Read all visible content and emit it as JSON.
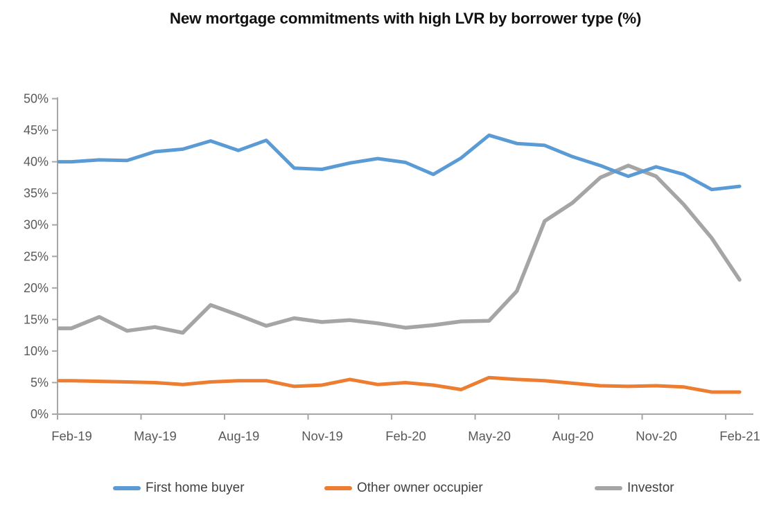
{
  "title": "New mortgage commitments with high LVR by borrower type (%)",
  "colors": {
    "first_home_buyer": "#5B9BD5",
    "other_owner_occupier": "#ED7D31",
    "investor": "#A5A5A5",
    "axis": "#A6A6A6",
    "tick_label": "#595959",
    "legend_text": "#404040",
    "title_text": "#111111"
  },
  "chart_data": {
    "type": "line",
    "title": "New mortgage commitments with high LVR by borrower type (%)",
    "xlabel": "",
    "ylabel": "",
    "ylim": [
      0,
      50
    ],
    "y_tick_step": 5,
    "grid": false,
    "legend_position": "bottom",
    "categories": [
      "Feb-19",
      "Mar-19",
      "Apr-19",
      "May-19",
      "Jun-19",
      "Jul-19",
      "Aug-19",
      "Sep-19",
      "Oct-19",
      "Nov-19",
      "Dec-19",
      "Jan-20",
      "Feb-20",
      "Mar-20",
      "Apr-20",
      "May-20",
      "Jun-20",
      "Jul-20",
      "Aug-20",
      "Sep-20",
      "Oct-20",
      "Nov-20",
      "Dec-20",
      "Jan-21",
      "Feb-21"
    ],
    "x_tick_labels": [
      "Feb-19",
      "May-19",
      "Aug-19",
      "Nov-19",
      "Feb-20",
      "May-20",
      "Aug-20",
      "Nov-20",
      "Feb-21"
    ],
    "y_tick_labels": [
      "0%",
      "5%",
      "10%",
      "15%",
      "20%",
      "25%",
      "30%",
      "35%",
      "40%",
      "45%",
      "50%"
    ],
    "series": [
      {
        "name": "First home buyer",
        "color": "#5B9BD5",
        "values": [
          40.0,
          40.3,
          40.2,
          41.6,
          42.0,
          43.3,
          41.8,
          43.4,
          39.0,
          38.8,
          39.8,
          40.5,
          39.9,
          38.0,
          40.6,
          44.2,
          42.9,
          42.6,
          40.8,
          39.4,
          37.7,
          39.2,
          38.0,
          35.6,
          36.1
        ]
      },
      {
        "name": "Other owner occupier",
        "color": "#ED7D31",
        "values": [
          5.3,
          5.2,
          5.1,
          5.0,
          4.7,
          5.1,
          5.3,
          5.3,
          4.4,
          4.6,
          5.5,
          4.7,
          5.0,
          4.6,
          3.9,
          5.8,
          5.5,
          5.3,
          4.9,
          4.5,
          4.4,
          4.5,
          4.3,
          3.5,
          3.5
        ]
      },
      {
        "name": "Investor",
        "color": "#A5A5A5",
        "values": [
          13.6,
          15.4,
          13.2,
          13.8,
          12.9,
          17.3,
          15.7,
          14.0,
          15.2,
          14.6,
          14.9,
          14.4,
          13.7,
          14.1,
          14.7,
          14.8,
          19.5,
          30.6,
          33.5,
          37.5,
          39.4,
          37.7,
          33.2,
          27.9,
          21.3
        ]
      }
    ]
  },
  "legend": {
    "items": [
      {
        "label": "First home buyer",
        "color": "#5B9BD5"
      },
      {
        "label": "Other owner occupier",
        "color": "#ED7D31"
      },
      {
        "label": "Investor",
        "color": "#A5A5A5"
      }
    ]
  }
}
